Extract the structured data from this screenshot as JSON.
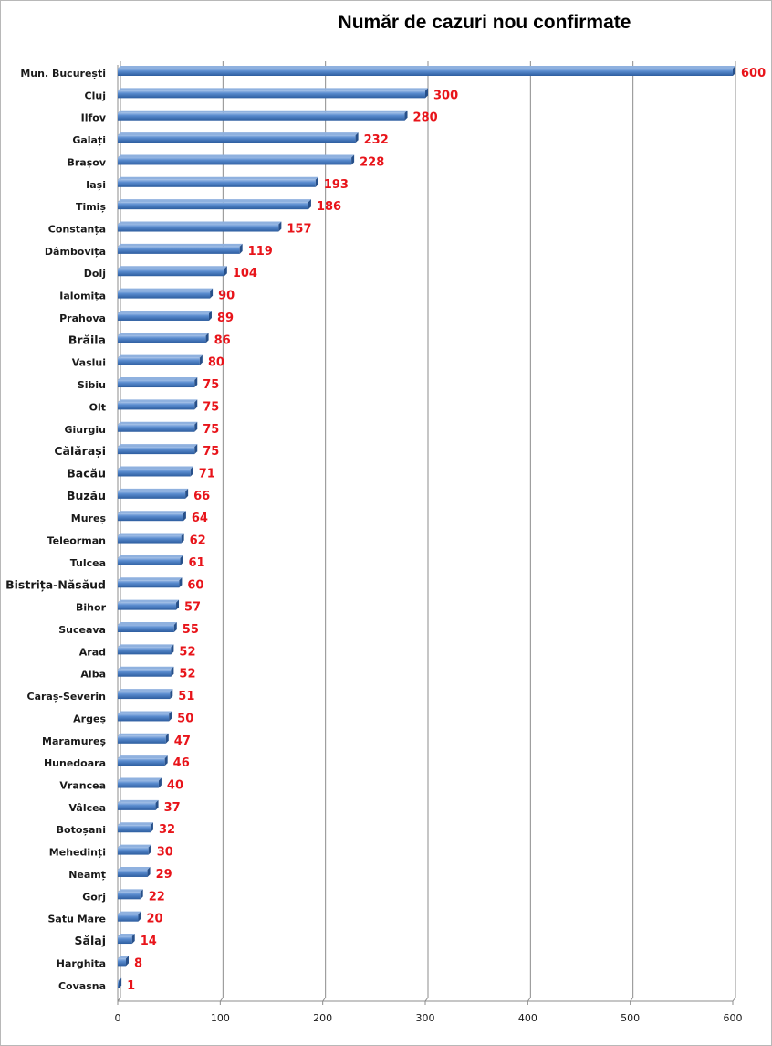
{
  "chart_data": {
    "type": "bar",
    "orientation": "horizontal",
    "title": "Număr de cazuri nou confirmate",
    "xlim": [
      0,
      600
    ],
    "xticks": [
      0,
      100,
      200,
      300,
      400,
      500,
      600
    ],
    "grid": true,
    "legend": "none",
    "bar_color": "#4f81bd",
    "label_color": "#e8141a",
    "categories": [
      "Mun. București",
      "Cluj",
      "Ilfov",
      "Galați",
      "Brașov",
      "Iași",
      "Timiș",
      "Constanța",
      "Dâmbovița",
      "Dolj",
      "Ialomița",
      "Prahova",
      "Brăila",
      "Vaslui",
      "Sibiu",
      "Olt",
      "Giurgiu",
      "Călărași",
      "Bacău",
      "Buzău",
      "Mureș",
      "Teleorman",
      "Tulcea",
      "Bistrița-Năsăud",
      "Bihor",
      "Suceava",
      "Arad",
      "Alba",
      "Caraș-Severin",
      "Argeș",
      "Maramureș",
      "Hunedoara",
      "Vrancea",
      "Vâlcea",
      "Botoșani",
      "Mehedinți",
      "Neamț",
      "Gorj",
      "Satu Mare",
      "Sălaj",
      "Harghita",
      "Covasna"
    ],
    "values": [
      600,
      300,
      280,
      232,
      228,
      193,
      186,
      157,
      119,
      104,
      90,
      89,
      86,
      80,
      75,
      75,
      75,
      75,
      71,
      66,
      64,
      62,
      61,
      60,
      57,
      55,
      52,
      52,
      51,
      50,
      47,
      46,
      40,
      37,
      32,
      30,
      29,
      22,
      20,
      14,
      8,
      1
    ]
  }
}
